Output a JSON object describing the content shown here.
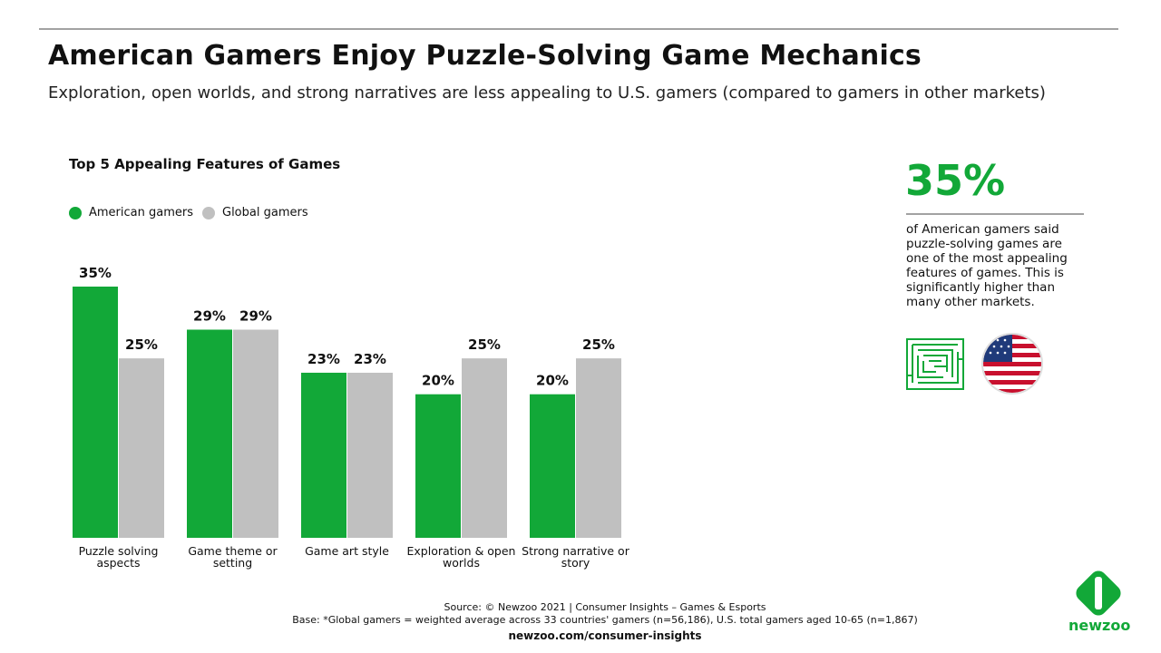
{
  "title": "American Gamers Enjoy Puzzle-Solving Game Mechanics",
  "subtitle": "Exploration, open worlds, and strong narratives are less appealing to U.S. gamers (compared to gamers in other markets)",
  "chart_data": {
    "type": "bar",
    "title": "Top 5 Appealing Features of Games",
    "categories": [
      "Puzzle solving aspects",
      "Game theme or setting",
      "Game art style",
      "Exploration & open worlds",
      "Strong narrative or story"
    ],
    "series": [
      {
        "name": "American gamers",
        "color": "#12a838",
        "values": [
          35,
          29,
          23,
          20,
          20
        ],
        "value_labels": [
          "35%",
          "29%",
          "23%",
          "20%",
          "20%"
        ]
      },
      {
        "name": "Global gamers",
        "color": "#c0c0c0",
        "values": [
          25,
          29,
          23,
          25,
          25
        ],
        "value_labels": [
          "25%",
          "29%",
          "23%",
          "25%",
          "25%"
        ]
      }
    ]
  },
  "callout": {
    "value": "35%",
    "text": "of American gamers said puzzle-solving games are one of the most appealing features of games. This is significantly higher than many other markets."
  },
  "footer": {
    "source": "Source: © Newzoo 2021 | Consumer Insights – Games & Esports",
    "base": "Base: *Global gamers = weighted average across 33 countries' gamers (n=56,186),  U.S. total gamers aged 10-65 (n=1,867)",
    "url": "newzoo.com/consumer-insights"
  },
  "logo": "newzoo"
}
